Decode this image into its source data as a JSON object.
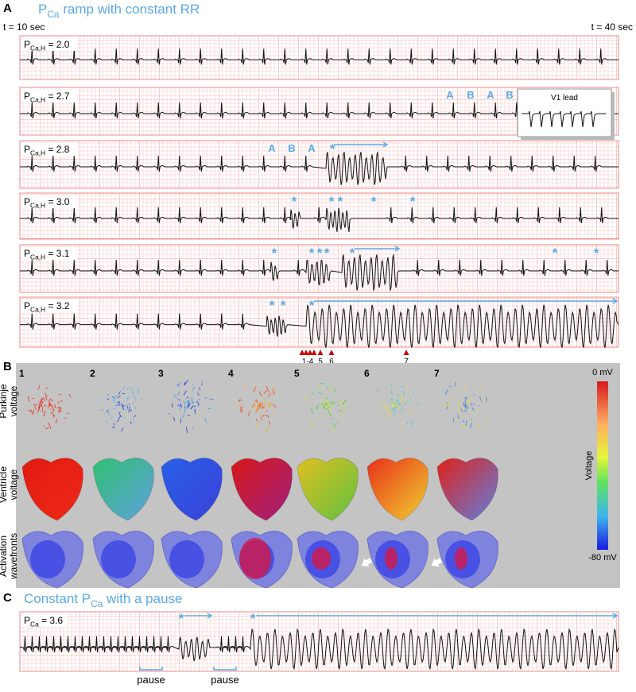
{
  "panel_a": {
    "letter": "A",
    "title": {
      "main": "P",
      "sub": "Ca",
      "rest": " ramp with constant RR"
    },
    "t_start": "t = 10 sec",
    "t_end": "t = 40 sec",
    "strips": [
      {
        "label": {
          "main": "P",
          "sub": "Ca,H",
          "rest": " = 2.0"
        },
        "annotations": []
      },
      {
        "label": {
          "main": "P",
          "sub": "Ca,H",
          "rest": " = 2.7"
        },
        "annotations": [
          "A",
          "B",
          "A",
          "B"
        ]
      },
      {
        "label": {
          "main": "P",
          "sub": "Ca,H",
          "rest": " = 2.8"
        },
        "annotations": [
          "A",
          "B",
          "A",
          "*"
        ]
      },
      {
        "label": {
          "main": "P",
          "sub": "Ca,H",
          "rest": " = 3.0"
        },
        "annotations": [
          "*",
          "*",
          "*",
          "*",
          "*"
        ]
      },
      {
        "label": {
          "main": "P",
          "sub": "Ca,H",
          "rest": " = 3.1"
        },
        "annotations": [
          "*",
          "*",
          "*",
          "*",
          "*",
          "*",
          "*"
        ]
      },
      {
        "label": {
          "main": "P",
          "sub": "Ca,H",
          "rest": " = 3.2"
        },
        "annotations": [
          "*",
          "*",
          "*"
        ]
      }
    ],
    "inset_label": "V1 lead",
    "markers": [
      "1-4",
      "5",
      "6",
      "7"
    ]
  },
  "panel_b": {
    "letter": "B",
    "columns": [
      "1",
      "2",
      "3",
      "4",
      "5",
      "6",
      "7"
    ],
    "rows": [
      [
        "Purkinje",
        "voltage"
      ],
      [
        "Ventricle",
        "voltage"
      ],
      [
        "Activation",
        "wavefronts"
      ]
    ],
    "colorbar": {
      "max": "0 mV",
      "title": "Voltage",
      "min": "-80 mV"
    }
  },
  "panel_c": {
    "letter": "C",
    "title": {
      "main": "Constant P",
      "sub": "Ca",
      "rest": " with a pause"
    },
    "label": {
      "main": "P",
      "sub": "Ca",
      "rest": " = 3.6"
    },
    "annotations": [
      "*",
      "*"
    ],
    "pauses": [
      "pause",
      "pause"
    ]
  }
}
